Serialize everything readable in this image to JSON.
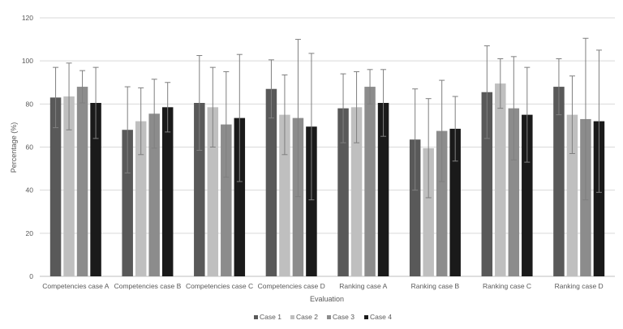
{
  "chart_data": {
    "type": "bar",
    "title": "",
    "xlabel": "Evaluation",
    "ylabel": "Percentage (%)",
    "ylim": [
      0,
      120
    ],
    "yticks": [
      0,
      20,
      40,
      60,
      80,
      100,
      120
    ],
    "grid": true,
    "legend_position": "bottom",
    "categories": [
      "Competencies case A",
      "Competencies case B",
      "Competencies case C",
      "Competencies case D",
      "Ranking case A",
      "Ranking case B",
      "Ranking case C",
      "Ranking case D"
    ],
    "series": [
      {
        "name": "Case 1",
        "color": "#595959",
        "values": [
          83,
          68,
          80.5,
          87,
          78,
          63.5,
          85.5,
          88
        ],
        "error": [
          14,
          20,
          22,
          13.5,
          16,
          23.5,
          21.5,
          13
        ]
      },
      {
        "name": "Case 2",
        "color": "#bfbfbf",
        "values": [
          83.5,
          72,
          78.5,
          75,
          78.5,
          59.5,
          89.5,
          75
        ],
        "error": [
          15.5,
          15.5,
          18.5,
          18.5,
          16.5,
          23,
          11.5,
          18
        ]
      },
      {
        "name": "Case 3",
        "color": "#8c8c8c",
        "values": [
          88,
          75.5,
          70.5,
          73.5,
          88,
          67.5,
          78,
          73
        ],
        "error": [
          7.5,
          16,
          24.5,
          36.5,
          8,
          23.5,
          24,
          37.5
        ]
      },
      {
        "name": "Case 4",
        "color": "#1a1a1a",
        "values": [
          80.5,
          78.5,
          73.5,
          69.5,
          80.5,
          68.5,
          75,
          72
        ],
        "error": [
          16.5,
          11.5,
          29.5,
          34,
          15.5,
          15,
          22,
          33
        ]
      }
    ]
  }
}
